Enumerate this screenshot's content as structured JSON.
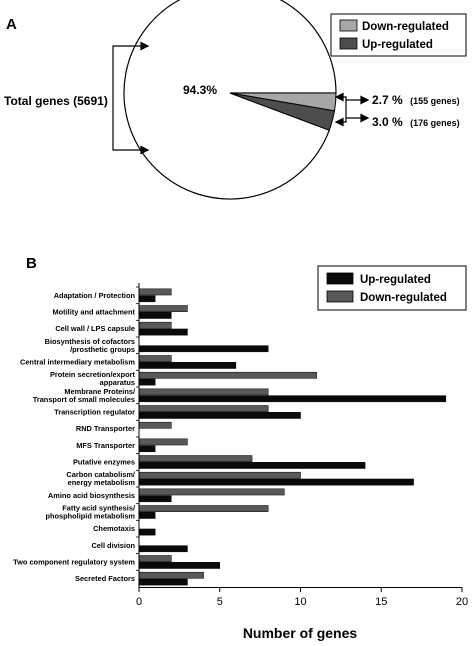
{
  "colors": {
    "up": "#0a0a0a",
    "down": "#595959",
    "pie_down": "#a6a6a6",
    "pie_up": "#4d4d4d",
    "pie_rest": "#ffffff",
    "stroke": "#000000"
  },
  "chart_data": [
    {
      "type": "pie",
      "panel_label": "A",
      "slices": [
        {
          "label": "94.3%",
          "value": 94.3,
          "color": "#ffffff"
        },
        {
          "label": "2.7 %",
          "detail": "(155 genes)",
          "value": 2.7,
          "color": "#a6a6a6"
        },
        {
          "label": "3.0 %",
          "detail": "(176 genes)",
          "value": 3.0,
          "color": "#4d4d4d"
        }
      ],
      "total_label": "Total genes (5691)",
      "legend": [
        {
          "name": "Down-regulated",
          "color": "#a6a6a6"
        },
        {
          "name": "Up-regulated",
          "color": "#4d4d4d"
        }
      ],
      "legend_position": "top-right"
    },
    {
      "type": "bar",
      "orientation": "horizontal",
      "panel_label": "B",
      "xlabel": "Number of genes",
      "xlim": [
        0,
        20
      ],
      "xticks": [
        0,
        5,
        10,
        15,
        20
      ],
      "legend": [
        {
          "name": "Up-regulated",
          "color": "#0a0a0a"
        },
        {
          "name": "Down-regulated",
          "color": "#595959"
        }
      ],
      "legend_position": "top-right",
      "categories": [
        {
          "lines": [
            "Adaptation / Protection"
          ]
        },
        {
          "lines": [
            "Motility and attachment"
          ]
        },
        {
          "lines": [
            "Cell wall / LPS capsule"
          ]
        },
        {
          "lines": [
            "Biosynthesis of cofactors",
            "/prosthetic groups"
          ]
        },
        {
          "lines": [
            "Central intermediary metabolism"
          ]
        },
        {
          "lines": [
            "Protein secretion/export",
            "apparatus"
          ]
        },
        {
          "lines": [
            "Membrane Proteins/",
            "Transport of small molecules"
          ]
        },
        {
          "lines": [
            "Transcription regulator"
          ]
        },
        {
          "lines": [
            "RND Transporter"
          ]
        },
        {
          "lines": [
            "MFS Transporter"
          ]
        },
        {
          "lines": [
            "Putative enzymes"
          ]
        },
        {
          "lines": [
            "Carbon catabolism/",
            "energy metabolism"
          ]
        },
        {
          "lines": [
            "Amino acid biosynthesis"
          ]
        },
        {
          "lines": [
            "Fatty acid synthesis/",
            "phospholipid metabolism"
          ]
        },
        {
          "lines": [
            "Chemotaxis"
          ]
        },
        {
          "lines": [
            "Cell division"
          ]
        },
        {
          "lines": [
            "Two component regulatory system"
          ]
        },
        {
          "lines": [
            "Secreted Factors"
          ]
        }
      ],
      "series": [
        {
          "name": "Down-regulated",
          "values": [
            2,
            3,
            2,
            0,
            2,
            11,
            8,
            8,
            2,
            3,
            7,
            10,
            9,
            8,
            0,
            0,
            2,
            4
          ]
        },
        {
          "name": "Up-regulated",
          "values": [
            1,
            2,
            3,
            8,
            6,
            1,
            19,
            10,
            0,
            1,
            14,
            17,
            2,
            1,
            1,
            3,
            5,
            3
          ]
        }
      ]
    }
  ]
}
